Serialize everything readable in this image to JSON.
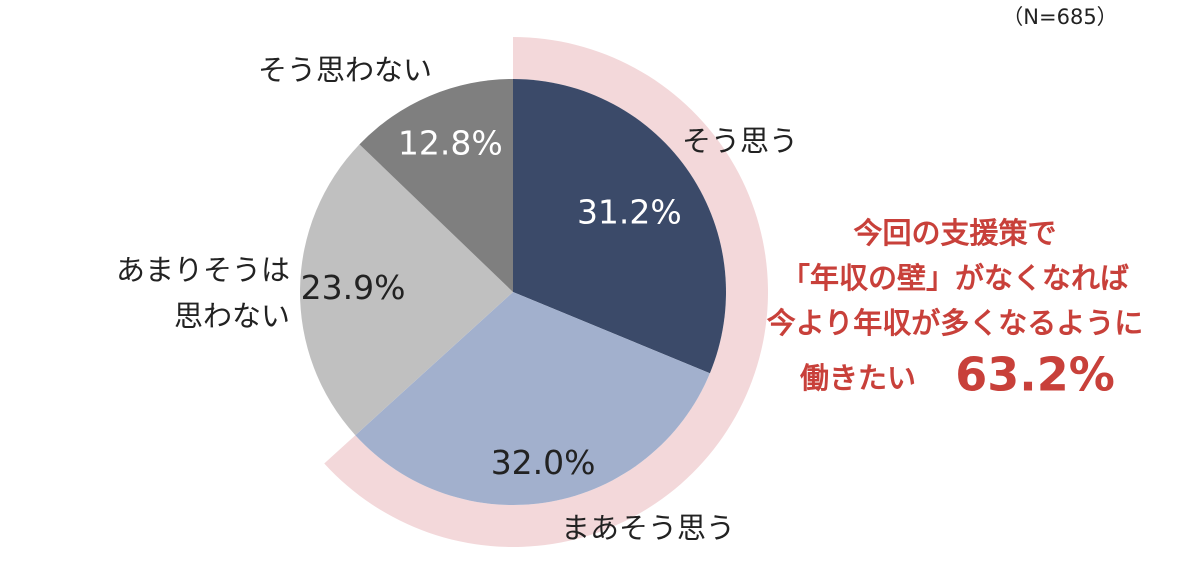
{
  "chart_data": {
    "type": "pie",
    "subtitle": "（N=685）",
    "categories": [
      "そう思う",
      "まあそう思う",
      "あまりそうは\n思わない",
      "そう思わない"
    ],
    "values": [
      31.2,
      32.0,
      23.9,
      12.8
    ],
    "value_labels": [
      "31.2%",
      "32.0%",
      "23.9%",
      "12.8%"
    ],
    "colors": [
      "#3b4a69",
      "#a2b0cd",
      "#c0c0c0",
      "#7f7f7f"
    ],
    "highlight": {
      "lines": [
        "今回の支援策で",
        "「年収の壁」がなくなれば",
        "今より年収が多くなるように"
      ],
      "label": "働きたい",
      "value": 63.2,
      "value_label": "63.2%",
      "color": "#c8403a",
      "ring_color": "#f3d8da"
    }
  }
}
